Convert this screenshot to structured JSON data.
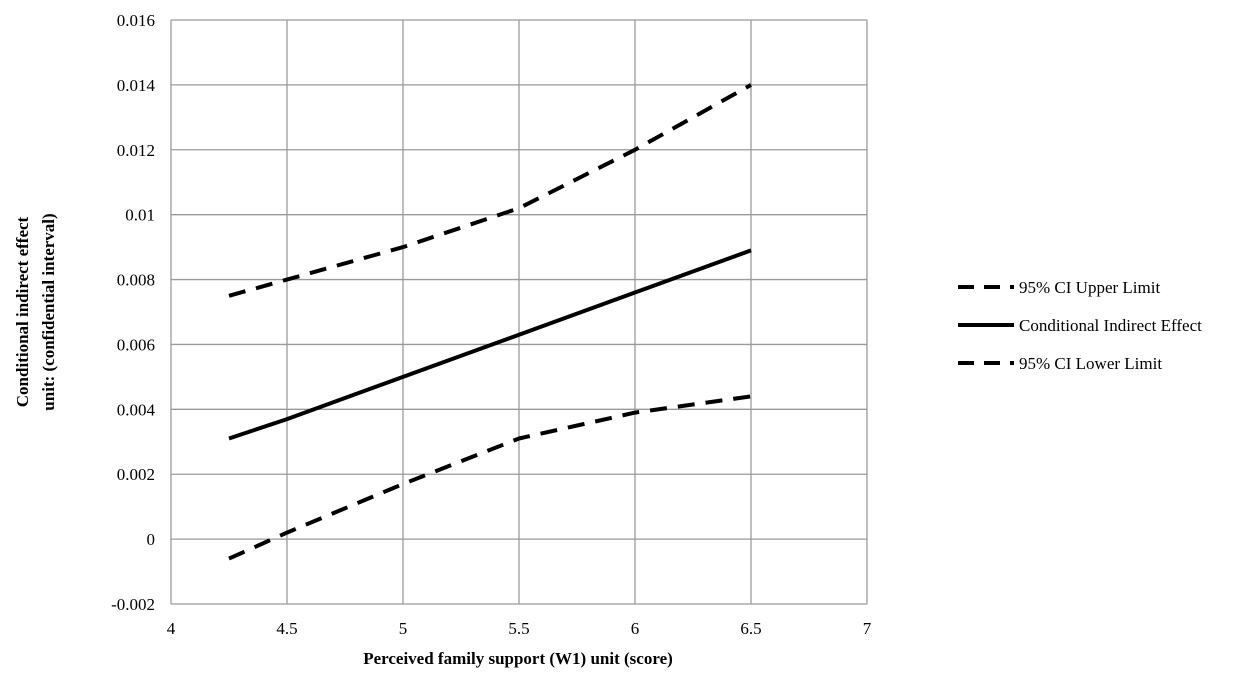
{
  "chart_data": {
    "type": "line",
    "xlabel": "Perceived family support (W1)    unit (score)",
    "ylabel_lines": [
      "Conditional indirect effect",
      "unit: (confidential interval)"
    ],
    "xlim": [
      4,
      7
    ],
    "ylim": [
      -0.002,
      0.016
    ],
    "x_ticks": [
      4,
      4.5,
      5,
      5.5,
      6,
      6.5,
      7
    ],
    "x_tick_labels": [
      "4",
      "4.5",
      "5",
      "5.5",
      "6",
      "6.5",
      "7"
    ],
    "y_ticks": [
      -0.002,
      0,
      0.002,
      0.004,
      0.006,
      0.008,
      0.01,
      0.012,
      0.014,
      0.016
    ],
    "y_tick_labels": [
      "-0.002",
      "0",
      "0.002",
      "0.004",
      "0.006",
      "0.008",
      "0.01",
      "0.012",
      "0.014",
      "0.016"
    ],
    "grid": true,
    "legend_position": "right",
    "series": [
      {
        "name": "95% CI Upper Limit",
        "style": "dashed",
        "color": "#000000",
        "x": [
          4.25,
          4.5,
          5.0,
          5.5,
          6.0,
          6.5
        ],
        "y": [
          0.0075,
          0.008,
          0.009,
          0.0102,
          0.012,
          0.014
        ]
      },
      {
        "name": "Conditional Indirect Effect",
        "style": "solid",
        "color": "#000000",
        "x": [
          4.25,
          4.5,
          5.0,
          5.5,
          6.0,
          6.5
        ],
        "y": [
          0.0031,
          0.0037,
          0.005,
          0.0063,
          0.0076,
          0.0089
        ]
      },
      {
        "name": "95% CI Lower Limit",
        "style": "dashed",
        "color": "#000000",
        "x": [
          4.25,
          4.5,
          5.0,
          5.5,
          6.0,
          6.5
        ],
        "y": [
          -0.0006,
          0.0002,
          0.0017,
          0.0031,
          0.0039,
          0.0044
        ]
      }
    ],
    "gridline_color": "#9a9a9a"
  }
}
